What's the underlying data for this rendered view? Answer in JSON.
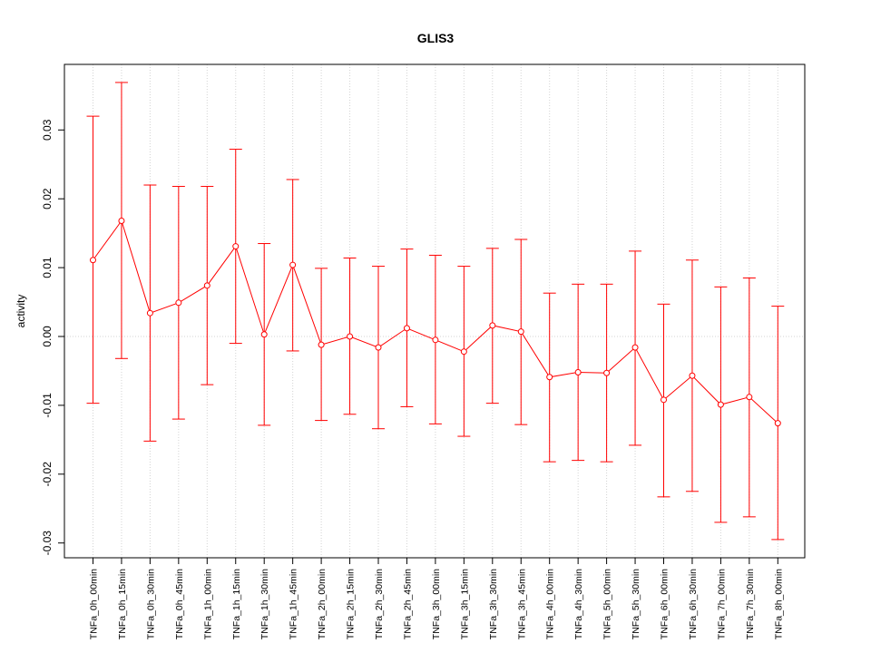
{
  "chart_data": {
    "type": "line",
    "title": "GLIS3",
    "xlabel": "",
    "ylabel": "activity",
    "ylim": [
      -0.032,
      0.0395
    ],
    "y_ticks": [
      -0.03,
      -0.02,
      -0.01,
      0.0,
      0.01,
      0.02,
      0.03
    ],
    "y_tick_labels": [
      "-0.03",
      "-0.02",
      "-0.01",
      "0.00",
      "0.01",
      "0.02",
      "0.03"
    ],
    "grid": true,
    "categories": [
      "TNFa_0h_00min",
      "TNFa_0h_15min",
      "TNFa_0h_30min",
      "TNFa_0h_45min",
      "TNFa_1h_00min",
      "TNFa_1h_15min",
      "TNFa_1h_30min",
      "TNFa_1h_45min",
      "TNFa_2h_00min",
      "TNFa_2h_15min",
      "TNFa_2h_30min",
      "TNFa_2h_45min",
      "TNFa_3h_00min",
      "TNFa_3h_15min",
      "TNFa_3h_30min",
      "TNFa_3h_45min",
      "TNFa_4h_00min",
      "TNFa_4h_30min",
      "TNFa_5h_00min",
      "TNFa_5h_30min",
      "TNFa_6h_00min",
      "TNFa_6h_30min",
      "TNFa_7h_00min",
      "TNFa_7h_30min",
      "TNFa_8h_00min"
    ],
    "series": [
      {
        "color": "#ff0000",
        "values": [
          0.0111,
          0.0168,
          0.0034,
          0.0049,
          0.0074,
          0.0131,
          0.0003,
          0.0104,
          -0.0012,
          0.0,
          -0.0016,
          0.0012,
          -0.0005,
          -0.0022,
          0.0016,
          0.0007,
          -0.0059,
          -0.0052,
          -0.0053,
          -0.0016,
          -0.0092,
          -0.0057,
          -0.0099,
          -0.0088,
          -0.0126
        ],
        "lower": [
          -0.0097,
          -0.0032,
          -0.0152,
          -0.012,
          -0.007,
          -0.001,
          -0.0129,
          -0.0021,
          -0.0122,
          -0.0113,
          -0.0134,
          -0.0102,
          -0.0127,
          -0.0145,
          -0.0097,
          -0.0128,
          -0.0182,
          -0.018,
          -0.0182,
          -0.0158,
          -0.0233,
          -0.0225,
          -0.027,
          -0.0262,
          -0.0295
        ],
        "upper": [
          0.032,
          0.0369,
          0.022,
          0.0218,
          0.0218,
          0.0272,
          0.0135,
          0.0228,
          0.0099,
          0.0114,
          0.0102,
          0.0127,
          0.0118,
          0.0102,
          0.0128,
          0.0141,
          0.0063,
          0.0076,
          0.0076,
          0.0124,
          0.0047,
          0.0111,
          0.0072,
          0.0085,
          0.0044
        ]
      }
    ]
  }
}
